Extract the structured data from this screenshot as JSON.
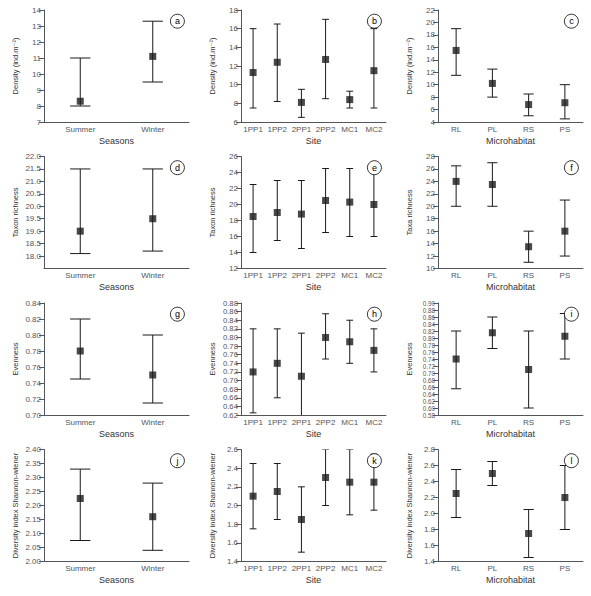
{
  "chart_data": [
    {
      "type": "scatter",
      "marker": "square",
      "color": "#1a1a1a",
      "grid": false,
      "annotation": "a",
      "xlabel": "Seasons",
      "ylabel": "Density (ind.m⁻²)",
      "categories": [
        "Summer",
        "Winter"
      ],
      "values": [
        8.3,
        11.1
      ],
      "ci_high": [
        11.0,
        13.3
      ],
      "ci_low": [
        8.0,
        9.5
      ],
      "ylim": [
        7,
        14
      ],
      "yticks": [
        7,
        8,
        9,
        10,
        11,
        12,
        13,
        14
      ]
    },
    {
      "type": "scatter",
      "marker": "square",
      "color": "#1a1a1a",
      "grid": false,
      "annotation": "b",
      "xlabel": "Site",
      "ylabel": "Density (ind.m⁻²)",
      "categories": [
        "1PP1",
        "1PP2",
        "2PP1",
        "2PP2",
        "MC1",
        "MC2"
      ],
      "values": [
        11.3,
        12.4,
        8.1,
        12.7,
        8.4,
        11.5
      ],
      "ci_high": [
        16.0,
        16.5,
        9.5,
        17.0,
        9.3,
        16.0
      ],
      "ci_low": [
        7.5,
        8.2,
        6.5,
        8.5,
        7.5,
        7.5
      ],
      "ylim": [
        6,
        18
      ],
      "yticks": [
        6,
        8,
        10,
        12,
        14,
        16,
        18
      ]
    },
    {
      "type": "scatter",
      "marker": "square",
      "color": "#1a1a1a",
      "grid": false,
      "annotation": "c",
      "xlabel": "Microhabitat",
      "ylabel": "Density (ind.m⁻²)",
      "categories": [
        "RL",
        "PL",
        "RS",
        "PS"
      ],
      "values": [
        15.5,
        10.2,
        6.8,
        7.1
      ],
      "ci_high": [
        19.0,
        12.5,
        8.5,
        10.0
      ],
      "ci_low": [
        11.5,
        8.0,
        5.0,
        4.5
      ],
      "ylim": [
        4,
        22
      ],
      "yticks": [
        4,
        6,
        8,
        10,
        12,
        14,
        16,
        18,
        20,
        22
      ]
    },
    {
      "type": "scatter",
      "marker": "square",
      "color": "#1a1a1a",
      "grid": false,
      "annotation": "d",
      "xlabel": "Seasons",
      "ylabel": "Taxon richness",
      "categories": [
        "Summer",
        "Winter"
      ],
      "values": [
        19.0,
        19.5
      ],
      "ci_high": [
        21.5,
        21.5
      ],
      "ci_low": [
        18.1,
        18.2
      ],
      "ylim": [
        17.5,
        22.0
      ],
      "yticks": [
        {
          "value": 18,
          "label": "18.0"
        },
        18.5,
        {
          "value": 19,
          "label": "19.0"
        },
        19.5,
        {
          "value": 20,
          "label": "20.0"
        },
        20.5,
        {
          "value": 21,
          "label": "21.0"
        },
        21.5,
        {
          "value": 22,
          "label": "22.0"
        }
      ]
    },
    {
      "type": "scatter",
      "marker": "square",
      "color": "#1a1a1a",
      "grid": false,
      "annotation": "e",
      "xlabel": "Site",
      "ylabel": "Taxon richness",
      "categories": [
        "1PP1",
        "1PP2",
        "2PP1",
        "2PP2",
        "MC1",
        "MC2"
      ],
      "values": [
        18.5,
        19.0,
        18.8,
        20.5,
        20.3,
        20.0
      ],
      "ci_high": [
        22.5,
        23.0,
        23.0,
        24.5,
        24.5,
        24.0
      ],
      "ci_low": [
        14.0,
        15.5,
        14.5,
        16.5,
        16.0,
        16.0
      ],
      "ylim": [
        12,
        26
      ],
      "yticks": [
        12,
        14,
        16,
        18,
        20,
        22,
        24,
        26
      ]
    },
    {
      "type": "scatter",
      "marker": "square",
      "color": "#1a1a1a",
      "grid": false,
      "annotation": "f",
      "xlabel": "Microhabitat",
      "ylabel": "Taxa richness",
      "categories": [
        "RL",
        "PL",
        "RS",
        "PS"
      ],
      "values": [
        24.0,
        23.5,
        13.5,
        16.0
      ],
      "ci_high": [
        26.5,
        27.0,
        16.0,
        21.0
      ],
      "ci_low": [
        20.0,
        20.0,
        11.0,
        12.0
      ],
      "ylim": [
        10,
        28
      ],
      "yticks": [
        10,
        12,
        14,
        16,
        18,
        20,
        22,
        24,
        26,
        28
      ]
    },
    {
      "type": "scatter",
      "marker": "square",
      "color": "#1a1a1a",
      "grid": false,
      "annotation": "g",
      "xlabel": "Seasons",
      "ylabel": "Evenness",
      "categories": [
        "Summer",
        "Winter"
      ],
      "values": [
        0.78,
        0.75
      ],
      "ci_high": [
        0.82,
        0.8
      ],
      "ci_low": [
        0.745,
        0.715
      ],
      "ylim": [
        0.7,
        0.84
      ],
      "yticks": [
        {
          "value": 0.7,
          "label": "0.70"
        },
        0.72,
        0.74,
        0.76,
        0.78,
        {
          "value": 0.8,
          "label": "0.80"
        },
        0.82,
        0.84
      ]
    },
    {
      "type": "scatter",
      "marker": "square",
      "color": "#1a1a1a",
      "grid": false,
      "annotation": "h",
      "xlabel": "Site",
      "ylabel": "Evenness",
      "categories": [
        "1PP1",
        "1PP2",
        "2PP1",
        "2PP2",
        "MC1",
        "MC2"
      ],
      "values": [
        0.72,
        0.74,
        0.71,
        0.8,
        0.79,
        0.77
      ],
      "ci_high": [
        0.82,
        0.82,
        0.81,
        0.855,
        0.84,
        0.82
      ],
      "ci_low": [
        0.625,
        0.66,
        0.61,
        0.75,
        0.74,
        0.72
      ],
      "ylim": [
        0.62,
        0.88
      ],
      "yticks": [
        0.62,
        0.64,
        0.66,
        0.68,
        {
          "value": 0.7,
          "label": "0.70"
        },
        0.72,
        0.74,
        0.76,
        0.78,
        {
          "value": 0.8,
          "label": "0.80"
        },
        0.82,
        0.84,
        0.86,
        0.88
      ]
    },
    {
      "type": "scatter",
      "marker": "square",
      "color": "#1a1a1a",
      "grid": false,
      "annotation": "i",
      "xlabel": "Microhabitat",
      "ylabel": "Evenness",
      "categories": [
        "RL",
        "PL",
        "RS",
        "PS"
      ],
      "values": [
        0.74,
        0.815,
        0.71,
        0.805
      ],
      "ci_high": [
        0.82,
        0.86,
        0.82,
        0.87
      ],
      "ci_low": [
        0.655,
        0.77,
        0.6,
        0.74
      ],
      "ylim": [
        0.58,
        0.9
      ],
      "yticks": [
        0.58,
        {
          "value": 0.6,
          "label": "0.60"
        },
        0.62,
        0.64,
        0.66,
        0.68,
        {
          "value": 0.7,
          "label": "0.70"
        },
        0.72,
        0.74,
        0.76,
        0.78,
        {
          "value": 0.8,
          "label": "0.80"
        },
        0.82,
        0.84,
        0.86,
        0.88,
        {
          "value": 0.9,
          "label": "0.90"
        }
      ]
    },
    {
      "type": "scatter",
      "marker": "square",
      "color": "#1a1a1a",
      "grid": false,
      "annotation": "j",
      "xlabel": "Seasons",
      "ylabel": "Diversity index Shannon-wiener",
      "categories": [
        "Summer",
        "Winter"
      ],
      "values": [
        2.225,
        2.16
      ],
      "ci_high": [
        2.33,
        2.28
      ],
      "ci_low": [
        2.075,
        2.04
      ],
      "ylim": [
        2.0,
        2.4
      ],
      "yticks": [
        {
          "value": 2,
          "label": "2.00"
        },
        2.05,
        {
          "value": 2.1,
          "label": "2.10"
        },
        2.15,
        {
          "value": 2.2,
          "label": "2.20"
        },
        2.25,
        {
          "value": 2.3,
          "label": "2.30"
        },
        2.35,
        {
          "value": 2.4,
          "label": "2.40"
        }
      ]
    },
    {
      "type": "scatter",
      "marker": "square",
      "color": "#1a1a1a",
      "grid": false,
      "annotation": "k",
      "xlabel": "Site",
      "ylabel": "Diversity index Shannon-wiener",
      "categories": [
        "1PP1",
        "1PP2",
        "2PP1",
        "2PP2",
        "MC1",
        "MC2"
      ],
      "values": [
        2.1,
        2.15,
        1.85,
        2.3,
        2.25,
        2.25
      ],
      "ci_high": [
        2.45,
        2.45,
        2.2,
        2.6,
        2.6,
        2.55
      ],
      "ci_low": [
        1.75,
        1.85,
        1.5,
        2.0,
        1.9,
        1.95
      ],
      "ylim": [
        1.4,
        2.6
      ],
      "yticks": [
        1.4,
        1.6,
        1.8,
        {
          "value": 2,
          "label": "2.0"
        },
        2.2,
        2.4,
        2.6
      ]
    },
    {
      "type": "scatter",
      "marker": "square",
      "color": "#1a1a1a",
      "grid": false,
      "annotation": "l",
      "xlabel": "Microhabitat",
      "ylabel": "Diversity index Shannon-wiener",
      "categories": [
        "RL",
        "PL",
        "RS",
        "PS"
      ],
      "values": [
        2.25,
        2.5,
        1.75,
        2.2
      ],
      "ci_high": [
        2.55,
        2.65,
        2.05,
        2.6
      ],
      "ci_low": [
        1.95,
        2.35,
        1.45,
        1.8
      ],
      "ylim": [
        1.4,
        2.8
      ],
      "yticks": [
        1.4,
        1.6,
        1.8,
        {
          "value": 2,
          "label": "2.0"
        },
        2.2,
        2.4,
        2.6,
        2.8
      ]
    }
  ]
}
